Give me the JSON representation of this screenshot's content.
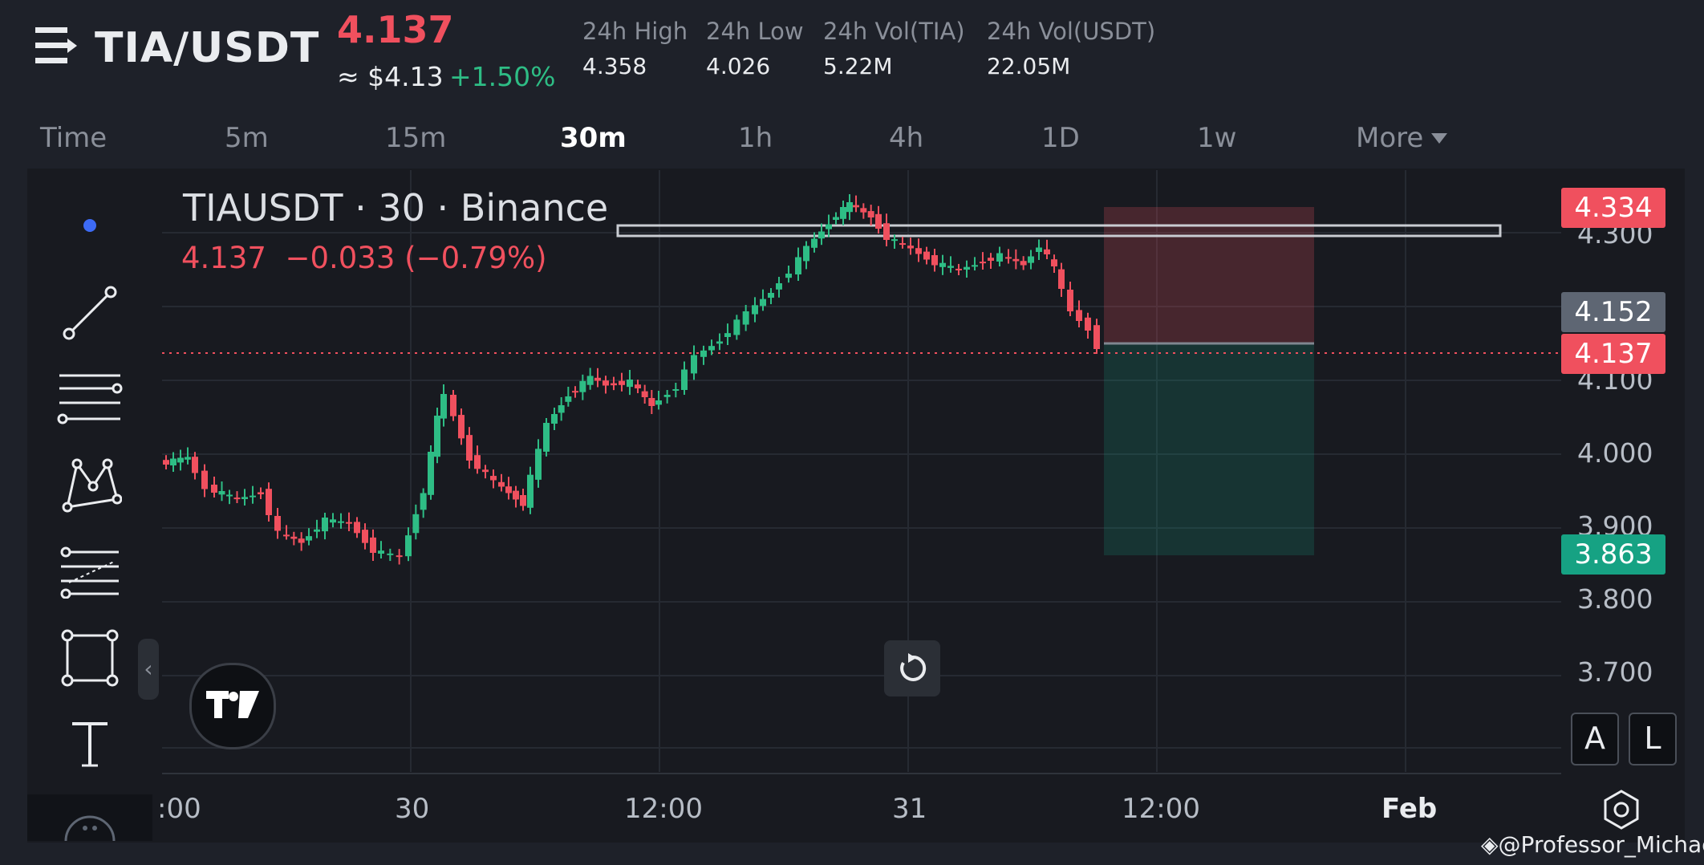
{
  "header": {
    "pair": "TIA/USDT",
    "last_price": "4.137",
    "usd_price": "≈ $4.13",
    "change_pct": "+1.50%",
    "stats": [
      {
        "label": "24h High",
        "value": "4.358"
      },
      {
        "label": "24h Low",
        "value": "4.026"
      },
      {
        "label": "24h Vol(TIA)",
        "value": "5.22M"
      },
      {
        "label": "24h Vol(USDT)",
        "value": "22.05M"
      }
    ]
  },
  "timeframes": [
    "Time",
    "5m",
    "15m",
    "30m",
    "1h",
    "4h",
    "1D",
    "1w",
    "More"
  ],
  "active_timeframe": "30m",
  "chart": {
    "legend": "TIAUSDT · 30 · Binance",
    "ohlc": "4.137  −0.033 (−0.79%)",
    "price_tags": [
      {
        "value": "4.334",
        "color": "#f0505e"
      },
      {
        "value": "4.152",
        "color": "#5e6673"
      },
      {
        "value": "4.137",
        "color": "#f0505e"
      },
      {
        "value": "3.863",
        "color": "#16a283"
      }
    ],
    "y_ticks": [
      "4.300",
      "4.100",
      "4.000",
      "3.900",
      "3.800",
      "3.700"
    ],
    "x_ticks": [
      ":00",
      "30",
      "12:00",
      "31",
      "12:00",
      "Feb"
    ],
    "axis_buttons": [
      "A",
      "L"
    ],
    "colors": {
      "up": "#2ebd85",
      "down": "#f0505e"
    }
  },
  "watermark": "@Professor_Michael"
}
